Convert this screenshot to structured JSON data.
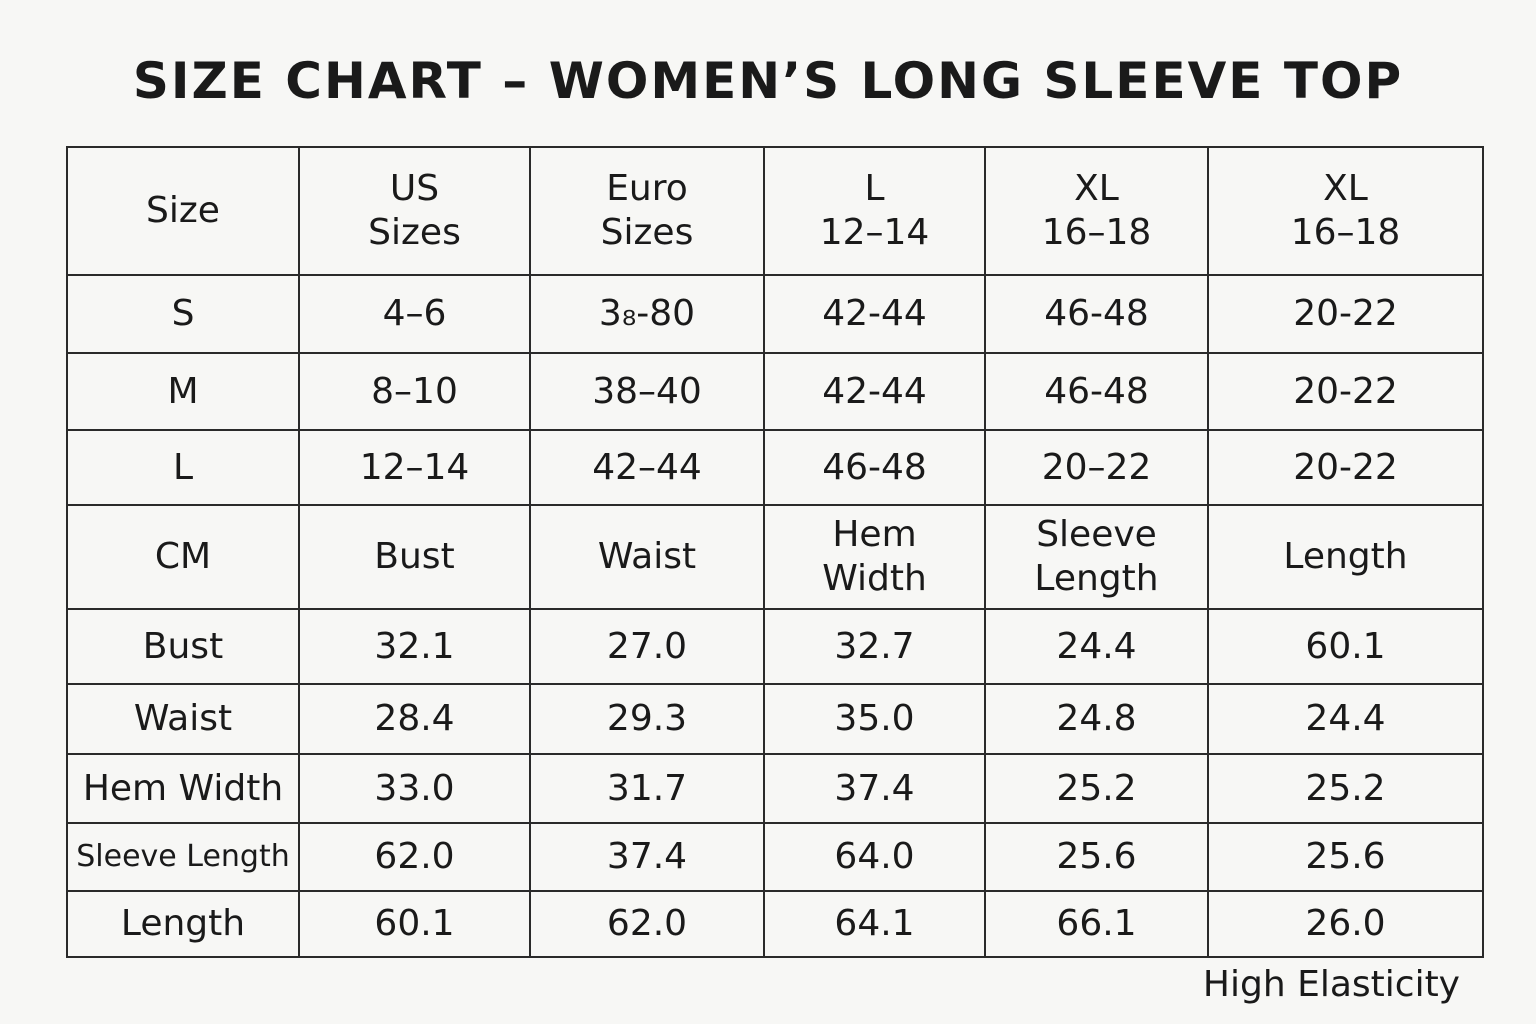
{
  "title": "SIZE CHART – WOMEN’S LONG SLEEVE TOP",
  "table": {
    "rows": [
      [
        "Size",
        "US\nSizes",
        "Euro\nSizes",
        "L\n12–14",
        "XL\n16–18",
        "XL\n16–18"
      ],
      [
        "S",
        "4–6",
        "3₈-80",
        "42-44",
        "46-48",
        "20-22"
      ],
      [
        "M",
        "8–10",
        "38–40",
        "42-44",
        "46-48",
        "20-22"
      ],
      [
        "L",
        "12–14",
        "42–44",
        "46-48",
        "20–22",
        "20-22"
      ],
      [
        "CM",
        "Bust",
        "Waist",
        "Hem\nWidth",
        "Sleeve\nLength",
        "Length"
      ],
      [
        "Bust",
        "32.1",
        "27.0",
        "32.7",
        "24.4",
        "60.1"
      ],
      [
        "Waist",
        "28.4",
        "29.3",
        "35.0",
        "24.8",
        "24.4"
      ],
      [
        "Hem Width",
        "33.0",
        "31.7",
        "37.4",
        "25.2",
        "25.2"
      ],
      [
        "Sleeve Length",
        "62.0",
        "37.4",
        "64.0",
        "25.6",
        "25.6"
      ],
      [
        "Length",
        "60.1",
        "62.0",
        "64.1",
        "66.1",
        "26.0"
      ]
    ]
  },
  "footer": "High Elasticity"
}
